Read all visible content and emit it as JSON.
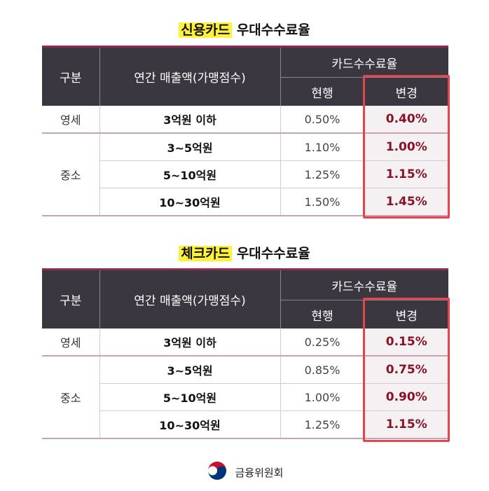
{
  "tables": [
    {
      "title_highlight": "신용카드",
      "title_rest": " 우대수수료율",
      "header": {
        "category": "구분",
        "revenue": "연간 매출액(가맹점수)",
        "rate_group": "카드수수료율",
        "current": "현행",
        "changed": "변경"
      },
      "rows": [
        {
          "category": "영세",
          "revenue": "3억원 이하",
          "current": "0.50%",
          "changed": "0.40%"
        },
        {
          "category": "중소",
          "revenue": "3~5억원",
          "current": "1.10%",
          "changed": "1.00%"
        },
        {
          "revenue": "5~10억원",
          "current": "1.25%",
          "changed": "1.15%"
        },
        {
          "revenue": "10~30억원",
          "current": "1.50%",
          "changed": "1.45%"
        }
      ]
    },
    {
      "title_highlight": "체크카드",
      "title_rest": " 우대수수료율",
      "header": {
        "category": "구분",
        "revenue": "연간 매출액(가맹점수)",
        "rate_group": "카드수수료율",
        "current": "현행",
        "changed": "변경"
      },
      "rows": [
        {
          "category": "영세",
          "revenue": "3억원 이하",
          "current": "0.25%",
          "changed": "0.15%"
        },
        {
          "category": "중소",
          "revenue": "3~5억원",
          "current": "0.85%",
          "changed": "0.75%"
        },
        {
          "revenue": "5~10억원",
          "current": "1.00%",
          "changed": "0.90%"
        },
        {
          "revenue": "10~30억원",
          "current": "1.25%",
          "changed": "1.15%"
        }
      ]
    }
  ],
  "footer": {
    "org_name": "금융위원회",
    "logo_icon": "taegeuk-emblem-icon"
  },
  "colors": {
    "header_bg": "#3a3740",
    "highlight": "#fff23a",
    "changed_text": "#8a1226",
    "box_border": "#e5444d"
  }
}
